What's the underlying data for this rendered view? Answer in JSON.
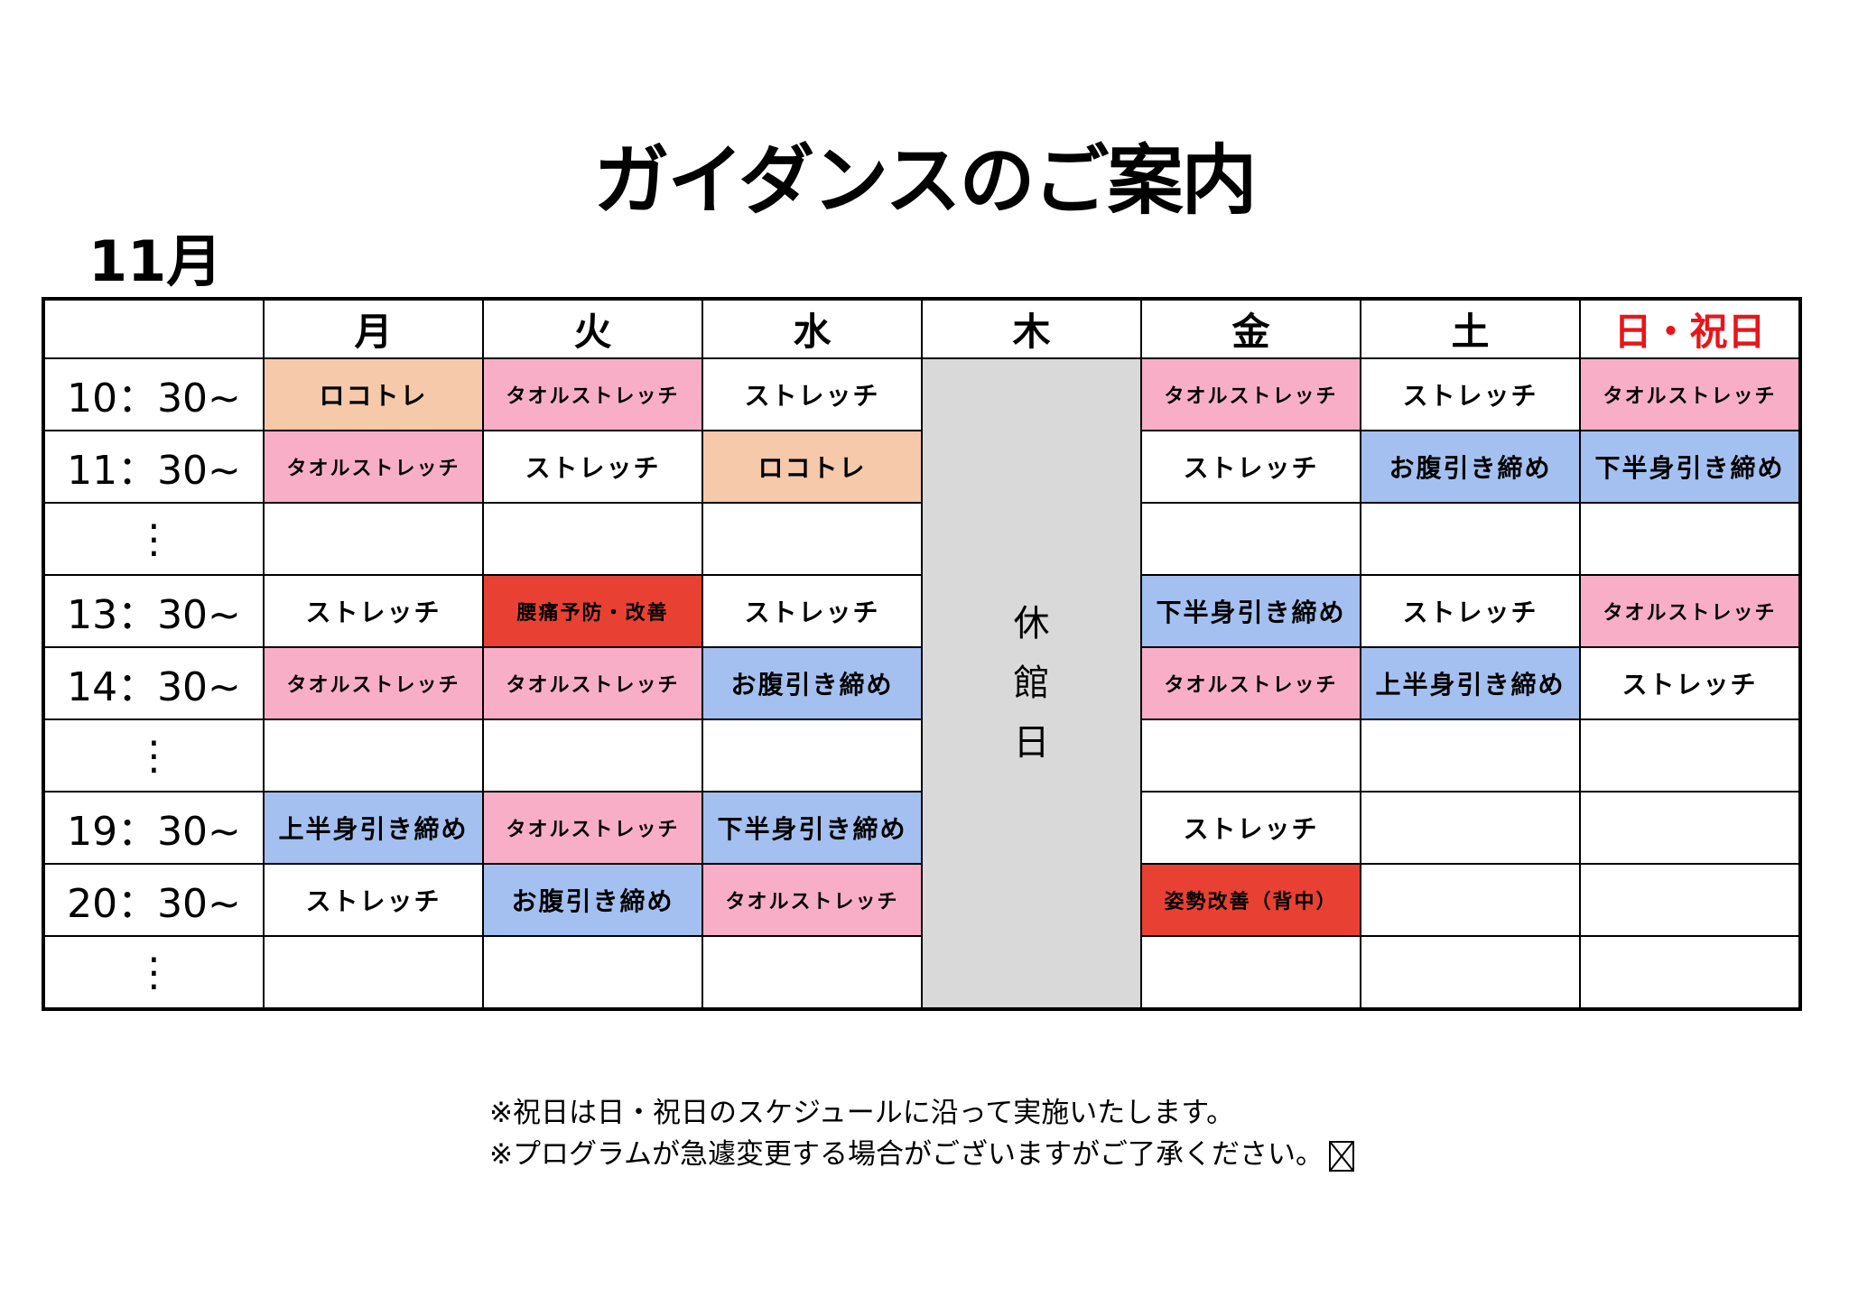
{
  "title": "ガイダンスのご案内",
  "month": "11月",
  "colors": {
    "peach": "#f5c9a9",
    "pink": "#f9aec8",
    "blue": "#a3c0f0",
    "red": "#e84133",
    "closed": "#d9d9d9",
    "sunday": "#e8151b"
  },
  "days": [
    "月",
    "火",
    "水",
    "木",
    "金",
    "土",
    "日・祝日"
  ],
  "closed_label": "休館日",
  "rows": [
    {
      "time": "10：30~",
      "cells": [
        [
          "ロコトレ",
          "peach"
        ],
        [
          "タオルストレッチ",
          "pink"
        ],
        [
          "ストレッチ",
          ""
        ],
        null,
        [
          "タオルストレッチ",
          "pink"
        ],
        [
          "ストレッチ",
          ""
        ],
        [
          "タオルストレッチ",
          "pink"
        ]
      ]
    },
    {
      "time": "11：30~",
      "cells": [
        [
          "タオルストレッチ",
          "pink"
        ],
        [
          "ストレッチ",
          ""
        ],
        [
          "ロコトレ",
          "peach"
        ],
        null,
        [
          "ストレッチ",
          ""
        ],
        [
          "お腹引き締め",
          "blue"
        ],
        [
          "下半身引き締め",
          "blue"
        ]
      ]
    },
    {
      "time": "⋮",
      "cells": [
        [
          "",
          ""
        ],
        [
          "",
          ""
        ],
        [
          "",
          ""
        ],
        null,
        [
          "",
          ""
        ],
        [
          "",
          ""
        ],
        [
          "",
          ""
        ]
      ]
    },
    {
      "time": "13：30~",
      "cells": [
        [
          "ストレッチ",
          ""
        ],
        [
          "腰痛予防・改善",
          "red"
        ],
        [
          "ストレッチ",
          ""
        ],
        null,
        [
          "下半身引き締め",
          "blue"
        ],
        [
          "ストレッチ",
          ""
        ],
        [
          "タオルストレッチ",
          "pink"
        ]
      ]
    },
    {
      "time": "14：30~",
      "cells": [
        [
          "タオルストレッチ",
          "pink"
        ],
        [
          "タオルストレッチ",
          "pink"
        ],
        [
          "お腹引き締め",
          "blue"
        ],
        null,
        [
          "タオルストレッチ",
          "pink"
        ],
        [
          "上半身引き締め",
          "blue"
        ],
        [
          "ストレッチ",
          ""
        ]
      ]
    },
    {
      "time": "⋮",
      "cells": [
        [
          "",
          ""
        ],
        [
          "",
          ""
        ],
        [
          "",
          ""
        ],
        null,
        [
          "",
          ""
        ],
        [
          "",
          ""
        ],
        [
          "",
          ""
        ]
      ]
    },
    {
      "time": "19：30~",
      "cells": [
        [
          "上半身引き締め",
          "blue"
        ],
        [
          "タオルストレッチ",
          "pink"
        ],
        [
          "下半身引き締め",
          "blue"
        ],
        null,
        [
          "ストレッチ",
          ""
        ],
        [
          "",
          ""
        ],
        [
          "",
          ""
        ]
      ]
    },
    {
      "time": "20：30~",
      "cells": [
        [
          "ストレッチ",
          ""
        ],
        [
          "お腹引き締め",
          "blue"
        ],
        [
          "タオルストレッチ",
          "pink"
        ],
        null,
        [
          "姿勢改善（背中）",
          "red"
        ],
        [
          "",
          ""
        ],
        [
          "",
          ""
        ]
      ]
    },
    {
      "time": "⋮",
      "cells": [
        [
          "",
          ""
        ],
        [
          "",
          ""
        ],
        [
          "",
          ""
        ],
        null,
        [
          "",
          ""
        ],
        [
          "",
          ""
        ],
        [
          "",
          ""
        ]
      ]
    }
  ],
  "notes": [
    "※祝日は日・祝日のスケジュールに沿って実施いたします。",
    "※プログラムが急遽変更する場合がございますがご了承ください。"
  ]
}
